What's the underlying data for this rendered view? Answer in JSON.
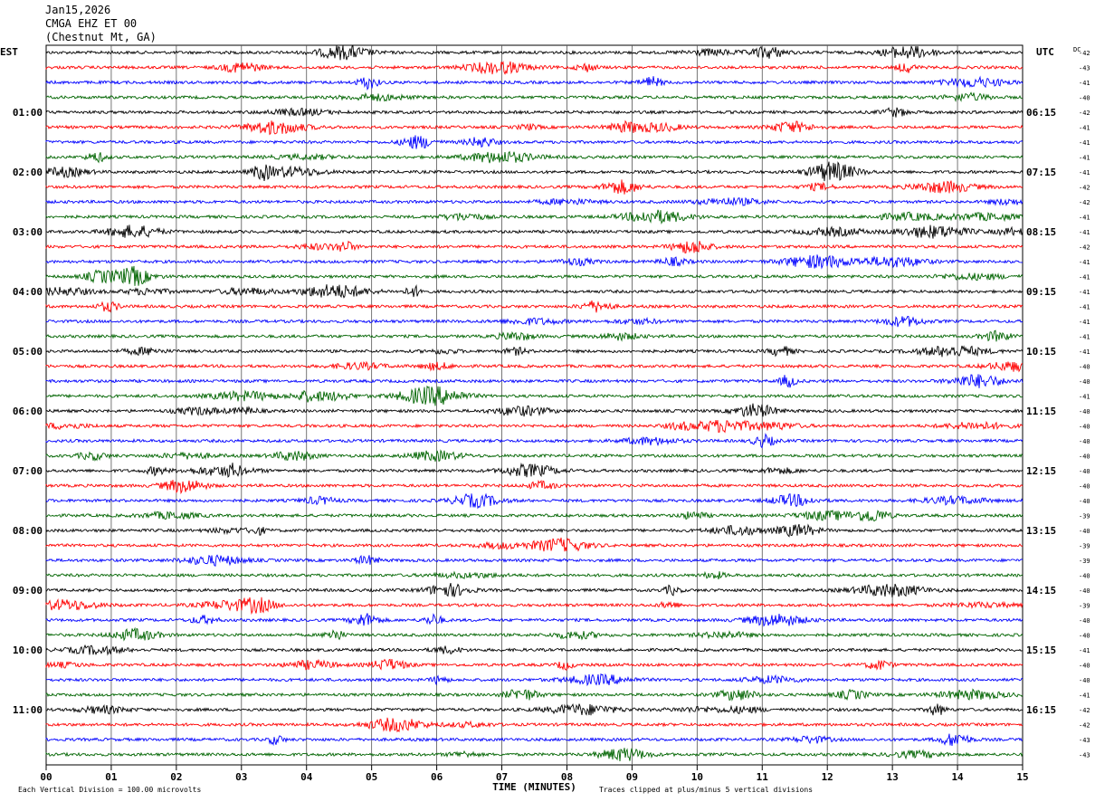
{
  "header": {
    "date": "Jan15,2026",
    "channel": "CMGA EHZ ET 00",
    "location": "(Chestnut Mt, GA)"
  },
  "chart_data": {
    "type": "line",
    "description_kind": "helicorder seismogram",
    "left_timezone_label": "EST",
    "right_timezone_label": "UTC",
    "dc_label": "DC",
    "trace_colors": [
      "#000000",
      "#ff0000",
      "#0000ff",
      "#006400"
    ],
    "traces_per_hour": 4,
    "minutes_per_trace": 15,
    "left_hour_labels": [
      "01:00",
      "02:00",
      "03:00",
      "04:00",
      "05:00",
      "06:00",
      "07:00",
      "08:00",
      "09:00",
      "10:00",
      "11:00"
    ],
    "right_hour_labels": [
      "06:15",
      "07:15",
      "08:15",
      "09:15",
      "10:15",
      "11:15",
      "12:15",
      "13:15",
      "14:15",
      "15:15",
      "16:15"
    ],
    "dc_offsets": [
      -42,
      -43,
      -41,
      -40,
      -42,
      -41,
      -41,
      -41,
      -41,
      -42,
      -42,
      -41,
      -41,
      -42,
      -41,
      -41,
      -41,
      -41,
      -41,
      -41,
      -41,
      -40,
      -40,
      -41,
      -40,
      -40,
      -40,
      -40,
      -40,
      -40,
      -40,
      -39,
      -40,
      -39,
      -39,
      -40,
      -40,
      -39,
      -40,
      -40,
      -41,
      -40,
      -40,
      -41,
      -42,
      -42,
      -43,
      -43
    ],
    "x_ticks": [
      "00",
      "01",
      "02",
      "03",
      "04",
      "05",
      "06",
      "07",
      "08",
      "09",
      "10",
      "11",
      "12",
      "13",
      "14",
      "15"
    ],
    "xlabel": "TIME (MINUTES)",
    "xlim": [
      0,
      15
    ],
    "scale_note": "Each Vertical Division =  100.00 microvolts",
    "clip_note": "Traces clipped at plus/minus 5 vertical divisions",
    "grid": "vertical minute lines"
  }
}
